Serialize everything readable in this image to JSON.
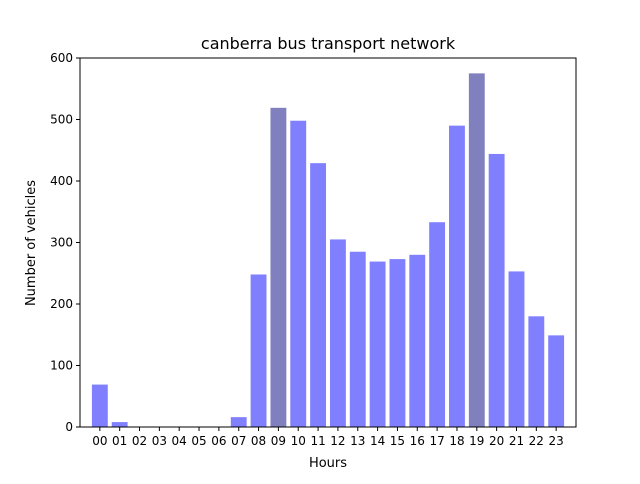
{
  "chart_data": {
    "type": "bar",
    "title": "canberra bus transport network",
    "xlabel": "Hours",
    "ylabel": "Number of vehicles",
    "categories": [
      "00",
      "01",
      "02",
      "03",
      "04",
      "05",
      "06",
      "07",
      "08",
      "09",
      "10",
      "11",
      "12",
      "13",
      "14",
      "15",
      "16",
      "17",
      "18",
      "19",
      "20",
      "21",
      "22",
      "23"
    ],
    "values": [
      69,
      8,
      0,
      0,
      0,
      0,
      0,
      16,
      248,
      519,
      498,
      429,
      305,
      285,
      269,
      273,
      280,
      333,
      490,
      575,
      444,
      253,
      180,
      149
    ],
    "highlighted": [
      "09",
      "19"
    ],
    "ylim": [
      0,
      600
    ],
    "yticks": [
      0,
      100,
      200,
      300,
      400,
      500,
      600
    ],
    "grid": false,
    "colors": {
      "bar": "#8080ff",
      "highlight": "#8080bf",
      "axis": "#000000"
    }
  }
}
